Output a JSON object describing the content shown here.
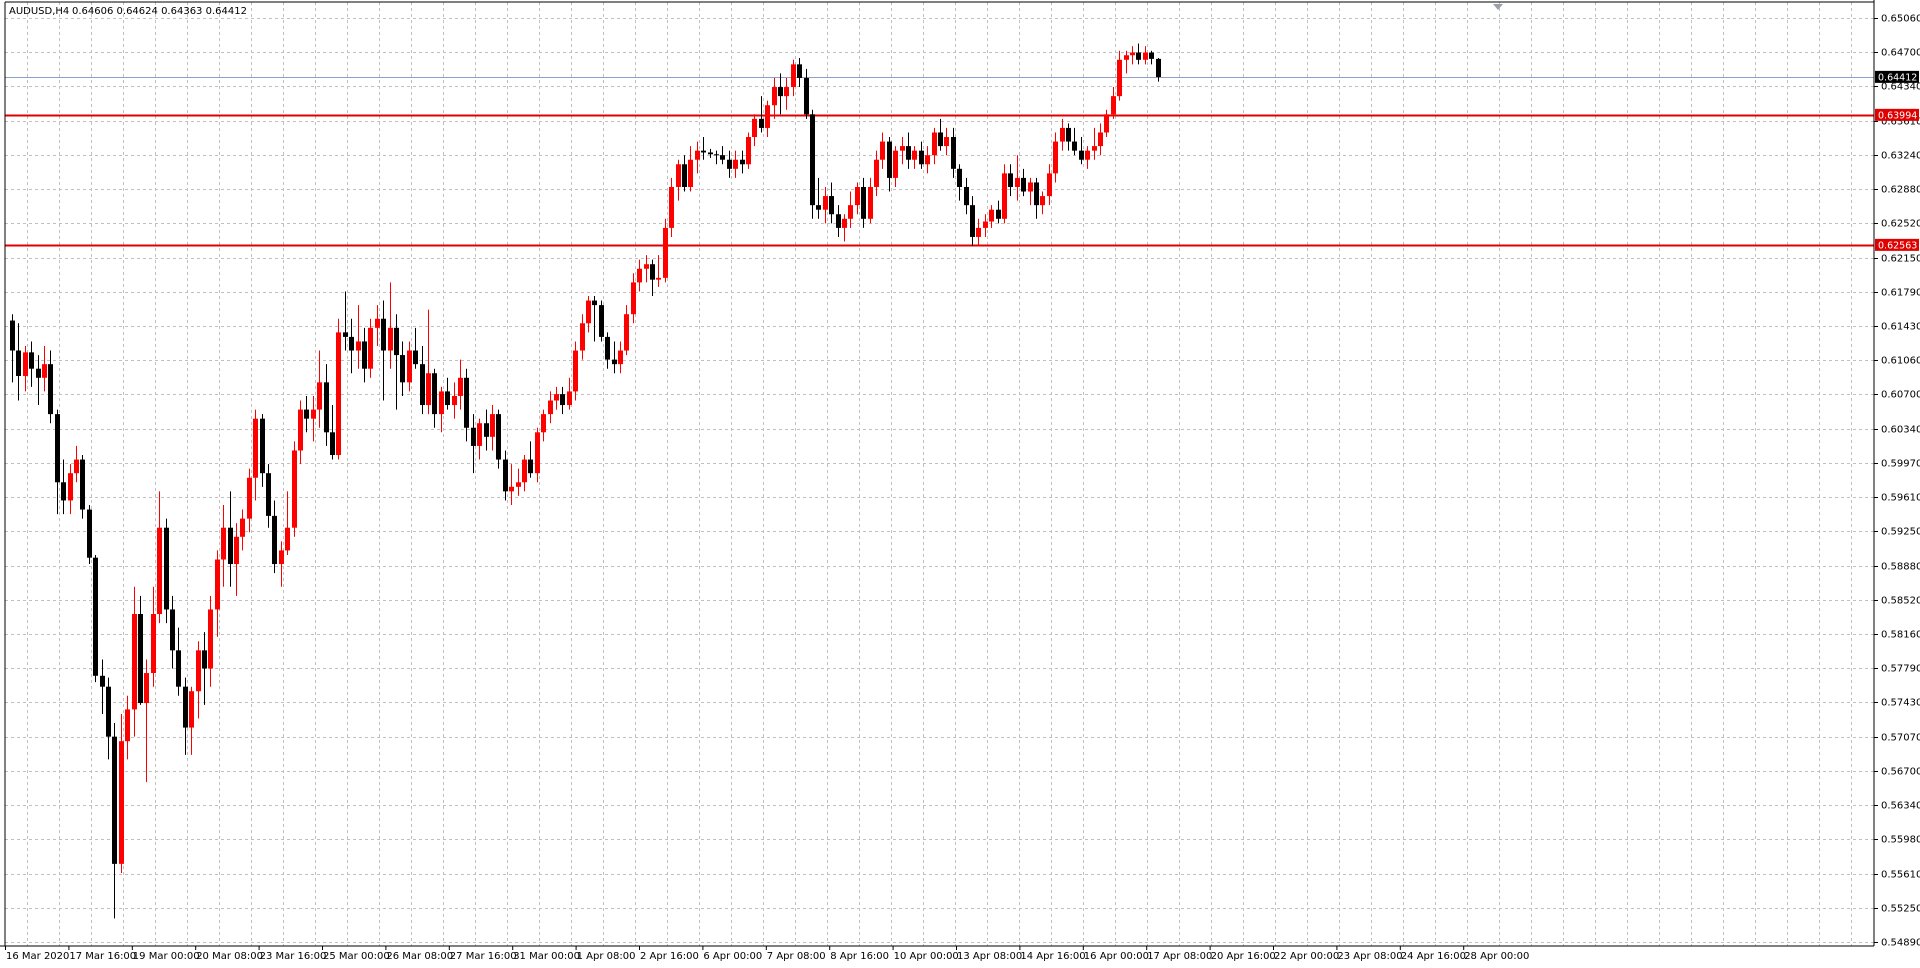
{
  "header": {
    "symbol_label": "AUDUSD,H4",
    "ohlc_label": "0.64606 0.64624 0.64363 0.64412"
  },
  "colors": {
    "bull": "#ff0000",
    "bear": "#000000",
    "grid": "#c0c0c0",
    "level_line": "#e00000",
    "bid_line": "#8da0c8",
    "background": "#ffffff"
  },
  "price_axis": {
    "ticks": [
      "0.65060",
      "0.64700",
      "0.64340",
      "0.63610",
      "0.63240",
      "0.62880",
      "0.62520",
      "0.62150",
      "0.61790",
      "0.61430",
      "0.61060",
      "0.60700",
      "0.60340",
      "0.59970",
      "0.59610",
      "0.59250",
      "0.58880",
      "0.58520",
      "0.58160",
      "0.57790",
      "0.57430",
      "0.57070",
      "0.56700",
      "0.56340",
      "0.55980",
      "0.55610",
      "0.55250",
      "0.54890"
    ],
    "current_price_label": "0.64412",
    "levels": [
      {
        "label": "0.63994",
        "value": 0.63994
      },
      {
        "label": "0.62563",
        "value": 0.62563
      }
    ]
  },
  "time_axis": {
    "labels": [
      "16 Mar 2020",
      "17 Mar 16:00",
      "19 Mar 00:00",
      "20 Mar 08:00",
      "23 Mar 16:00",
      "25 Mar 00:00",
      "26 Mar 08:00",
      "27 Mar 16:00",
      "31 Mar 00:00",
      "1 Apr 08:00",
      "2 Apr 16:00",
      "6 Apr 00:00",
      "7 Apr 08:00",
      "8 Apr 16:00",
      "10 Apr 00:00",
      "13 Apr 08:00",
      "14 Apr 16:00",
      "16 Apr 00:00",
      "17 Apr 08:00",
      "20 Apr 16:00",
      "22 Apr 00:00",
      "23 Apr 08:00",
      "24 Apr 16:00",
      "28 Apr 00:00"
    ]
  },
  "chart_data": {
    "type": "candlestick",
    "title": "AUDUSD,H4",
    "ylim": [
      0.5489,
      0.6506
    ],
    "current_price": 0.64412,
    "grid": true,
    "candles": [
      {
        "o": 0.6173,
        "h": 0.618,
        "l": 0.6105,
        "c": 0.614
      },
      {
        "o": 0.614,
        "h": 0.617,
        "l": 0.6085,
        "c": 0.6112
      },
      {
        "o": 0.6112,
        "h": 0.6145,
        "l": 0.6095,
        "c": 0.6138
      },
      {
        "o": 0.6138,
        "h": 0.615,
        "l": 0.61,
        "c": 0.612
      },
      {
        "o": 0.612,
        "h": 0.6135,
        "l": 0.608,
        "c": 0.611
      },
      {
        "o": 0.611,
        "h": 0.6145,
        "l": 0.6095,
        "c": 0.6125
      },
      {
        "o": 0.6125,
        "h": 0.614,
        "l": 0.606,
        "c": 0.607
      },
      {
        "o": 0.607,
        "h": 0.6075,
        "l": 0.596,
        "c": 0.5995
      },
      {
        "o": 0.5995,
        "h": 0.602,
        "l": 0.596,
        "c": 0.5975
      },
      {
        "o": 0.5975,
        "h": 0.6015,
        "l": 0.596,
        "c": 0.6005
      },
      {
        "o": 0.6005,
        "h": 0.6035,
        "l": 0.5995,
        "c": 0.602
      },
      {
        "o": 0.602,
        "h": 0.6025,
        "l": 0.5955,
        "c": 0.5965
      },
      {
        "o": 0.5965,
        "h": 0.597,
        "l": 0.5905,
        "c": 0.5912
      },
      {
        "o": 0.5912,
        "h": 0.5915,
        "l": 0.5775,
        "c": 0.5782
      },
      {
        "o": 0.5782,
        "h": 0.58,
        "l": 0.574,
        "c": 0.577
      },
      {
        "o": 0.577,
        "h": 0.578,
        "l": 0.569,
        "c": 0.5715
      },
      {
        "o": 0.5715,
        "h": 0.573,
        "l": 0.5515,
        "c": 0.5575
      },
      {
        "o": 0.5575,
        "h": 0.574,
        "l": 0.5565,
        "c": 0.571
      },
      {
        "o": 0.571,
        "h": 0.576,
        "l": 0.569,
        "c": 0.5745
      },
      {
        "o": 0.5745,
        "h": 0.588,
        "l": 0.5715,
        "c": 0.585
      },
      {
        "o": 0.585,
        "h": 0.587,
        "l": 0.575,
        "c": 0.5752
      },
      {
        "o": 0.5752,
        "h": 0.58,
        "l": 0.5665,
        "c": 0.5785
      },
      {
        "o": 0.5785,
        "h": 0.588,
        "l": 0.577,
        "c": 0.585
      },
      {
        "o": 0.585,
        "h": 0.5985,
        "l": 0.584,
        "c": 0.5945
      },
      {
        "o": 0.5945,
        "h": 0.5955,
        "l": 0.584,
        "c": 0.5855
      },
      {
        "o": 0.5855,
        "h": 0.587,
        "l": 0.579,
        "c": 0.581
      },
      {
        "o": 0.581,
        "h": 0.5835,
        "l": 0.576,
        "c": 0.577
      },
      {
        "o": 0.577,
        "h": 0.578,
        "l": 0.5695,
        "c": 0.5725
      },
      {
        "o": 0.5725,
        "h": 0.577,
        "l": 0.5695,
        "c": 0.5765
      },
      {
        "o": 0.5765,
        "h": 0.582,
        "l": 0.5735,
        "c": 0.581
      },
      {
        "o": 0.581,
        "h": 0.583,
        "l": 0.575,
        "c": 0.579
      },
      {
        "o": 0.579,
        "h": 0.587,
        "l": 0.577,
        "c": 0.5855
      },
      {
        "o": 0.5855,
        "h": 0.592,
        "l": 0.5825,
        "c": 0.591
      },
      {
        "o": 0.591,
        "h": 0.597,
        "l": 0.588,
        "c": 0.5945
      },
      {
        "o": 0.5945,
        "h": 0.5985,
        "l": 0.588,
        "c": 0.5905
      },
      {
        "o": 0.5905,
        "h": 0.595,
        "l": 0.587,
        "c": 0.5935
      },
      {
        "o": 0.5935,
        "h": 0.5965,
        "l": 0.592,
        "c": 0.5955
      },
      {
        "o": 0.5955,
        "h": 0.601,
        "l": 0.594,
        "c": 0.6
      },
      {
        "o": 0.6,
        "h": 0.6075,
        "l": 0.5975,
        "c": 0.6065
      },
      {
        "o": 0.6065,
        "h": 0.607,
        "l": 0.599,
        "c": 0.6005
      },
      {
        "o": 0.6005,
        "h": 0.6015,
        "l": 0.5945,
        "c": 0.5958
      },
      {
        "o": 0.5958,
        "h": 0.5975,
        "l": 0.5895,
        "c": 0.5905
      },
      {
        "o": 0.5905,
        "h": 0.593,
        "l": 0.588,
        "c": 0.592
      },
      {
        "o": 0.592,
        "h": 0.5985,
        "l": 0.5915,
        "c": 0.5945
      },
      {
        "o": 0.5945,
        "h": 0.604,
        "l": 0.5935,
        "c": 0.603
      },
      {
        "o": 0.603,
        "h": 0.6085,
        "l": 0.6015,
        "c": 0.6075
      },
      {
        "o": 0.6075,
        "h": 0.609,
        "l": 0.605,
        "c": 0.6065
      },
      {
        "o": 0.6065,
        "h": 0.609,
        "l": 0.604,
        "c": 0.6075
      },
      {
        "o": 0.6075,
        "h": 0.614,
        "l": 0.6055,
        "c": 0.6105
      },
      {
        "o": 0.6105,
        "h": 0.6125,
        "l": 0.6035,
        "c": 0.605
      },
      {
        "o": 0.605,
        "h": 0.608,
        "l": 0.602,
        "c": 0.6025
      },
      {
        "o": 0.6025,
        "h": 0.6175,
        "l": 0.602,
        "c": 0.616
      },
      {
        "o": 0.616,
        "h": 0.6205,
        "l": 0.614,
        "c": 0.6155
      },
      {
        "o": 0.6155,
        "h": 0.6175,
        "l": 0.6115,
        "c": 0.614
      },
      {
        "o": 0.614,
        "h": 0.619,
        "l": 0.612,
        "c": 0.615
      },
      {
        "o": 0.615,
        "h": 0.6165,
        "l": 0.6105,
        "c": 0.612
      },
      {
        "o": 0.612,
        "h": 0.6175,
        "l": 0.611,
        "c": 0.6165
      },
      {
        "o": 0.6165,
        "h": 0.619,
        "l": 0.6145,
        "c": 0.6175
      },
      {
        "o": 0.6175,
        "h": 0.6195,
        "l": 0.6085,
        "c": 0.614
      },
      {
        "o": 0.614,
        "h": 0.6215,
        "l": 0.612,
        "c": 0.6165
      },
      {
        "o": 0.6165,
        "h": 0.618,
        "l": 0.6075,
        "c": 0.6135
      },
      {
        "o": 0.6135,
        "h": 0.615,
        "l": 0.609,
        "c": 0.6105
      },
      {
        "o": 0.6105,
        "h": 0.615,
        "l": 0.6095,
        "c": 0.614
      },
      {
        "o": 0.614,
        "h": 0.6165,
        "l": 0.612,
        "c": 0.6125
      },
      {
        "o": 0.6125,
        "h": 0.6145,
        "l": 0.607,
        "c": 0.608
      },
      {
        "o": 0.608,
        "h": 0.6185,
        "l": 0.607,
        "c": 0.6115
      },
      {
        "o": 0.6115,
        "h": 0.612,
        "l": 0.6055,
        "c": 0.607
      },
      {
        "o": 0.607,
        "h": 0.61,
        "l": 0.605,
        "c": 0.6095
      },
      {
        "o": 0.6095,
        "h": 0.611,
        "l": 0.6075,
        "c": 0.608
      },
      {
        "o": 0.608,
        "h": 0.6105,
        "l": 0.6065,
        "c": 0.609
      },
      {
        "o": 0.609,
        "h": 0.613,
        "l": 0.6075,
        "c": 0.611
      },
      {
        "o": 0.611,
        "h": 0.612,
        "l": 0.604,
        "c": 0.6055
      },
      {
        "o": 0.6055,
        "h": 0.607,
        "l": 0.6005,
        "c": 0.6035
      },
      {
        "o": 0.6035,
        "h": 0.6065,
        "l": 0.602,
        "c": 0.606
      },
      {
        "o": 0.606,
        "h": 0.6075,
        "l": 0.603,
        "c": 0.6045
      },
      {
        "o": 0.6045,
        "h": 0.608,
        "l": 0.603,
        "c": 0.607
      },
      {
        "o": 0.607,
        "h": 0.6075,
        "l": 0.601,
        "c": 0.602
      },
      {
        "o": 0.602,
        "h": 0.603,
        "l": 0.5975,
        "c": 0.5985
      },
      {
        "o": 0.5985,
        "h": 0.6015,
        "l": 0.597,
        "c": 0.599
      },
      {
        "o": 0.599,
        "h": 0.601,
        "l": 0.598,
        "c": 0.5995
      },
      {
        "o": 0.5995,
        "h": 0.6025,
        "l": 0.5985,
        "c": 0.602
      },
      {
        "o": 0.602,
        "h": 0.604,
        "l": 0.6,
        "c": 0.6005
      },
      {
        "o": 0.6005,
        "h": 0.6055,
        "l": 0.5995,
        "c": 0.605
      },
      {
        "o": 0.605,
        "h": 0.6075,
        "l": 0.604,
        "c": 0.607
      },
      {
        "o": 0.607,
        "h": 0.6095,
        "l": 0.606,
        "c": 0.6085
      },
      {
        "o": 0.6085,
        "h": 0.61,
        "l": 0.6075,
        "c": 0.6092
      },
      {
        "o": 0.6092,
        "h": 0.61,
        "l": 0.607,
        "c": 0.608
      },
      {
        "o": 0.608,
        "h": 0.611,
        "l": 0.6075,
        "c": 0.6095
      },
      {
        "o": 0.6095,
        "h": 0.615,
        "l": 0.6085,
        "c": 0.614
      },
      {
        "o": 0.614,
        "h": 0.618,
        "l": 0.613,
        "c": 0.617
      },
      {
        "o": 0.617,
        "h": 0.62,
        "l": 0.616,
        "c": 0.6195
      },
      {
        "o": 0.6195,
        "h": 0.62,
        "l": 0.615,
        "c": 0.619
      },
      {
        "o": 0.619,
        "h": 0.6195,
        "l": 0.615,
        "c": 0.6155
      },
      {
        "o": 0.6155,
        "h": 0.616,
        "l": 0.612,
        "c": 0.613
      },
      {
        "o": 0.613,
        "h": 0.615,
        "l": 0.6115,
        "c": 0.6125
      },
      {
        "o": 0.6125,
        "h": 0.615,
        "l": 0.6115,
        "c": 0.614
      },
      {
        "o": 0.614,
        "h": 0.619,
        "l": 0.6135,
        "c": 0.618
      },
      {
        "o": 0.618,
        "h": 0.6225,
        "l": 0.617,
        "c": 0.6215
      },
      {
        "o": 0.6215,
        "h": 0.624,
        "l": 0.6205,
        "c": 0.623
      },
      {
        "o": 0.623,
        "h": 0.6245,
        "l": 0.6215,
        "c": 0.6235
      },
      {
        "o": 0.6235,
        "h": 0.624,
        "l": 0.62,
        "c": 0.6218
      },
      {
        "o": 0.6218,
        "h": 0.6245,
        "l": 0.621,
        "c": 0.622
      },
      {
        "o": 0.622,
        "h": 0.6285,
        "l": 0.6215,
        "c": 0.6275
      },
      {
        "o": 0.6275,
        "h": 0.633,
        "l": 0.6265,
        "c": 0.632
      },
      {
        "o": 0.632,
        "h": 0.635,
        "l": 0.6305,
        "c": 0.6345
      },
      {
        "o": 0.6345,
        "h": 0.6355,
        "l": 0.6315,
        "c": 0.632
      },
      {
        "o": 0.632,
        "h": 0.6365,
        "l": 0.6315,
        "c": 0.635
      },
      {
        "o": 0.635,
        "h": 0.637,
        "l": 0.6335,
        "c": 0.636
      },
      {
        "o": 0.636,
        "h": 0.6375,
        "l": 0.635,
        "c": 0.6358
      },
      {
        "o": 0.6358,
        "h": 0.6362,
        "l": 0.6352,
        "c": 0.6356
      },
      {
        "o": 0.6356,
        "h": 0.636,
        "l": 0.6345,
        "c": 0.6355
      },
      {
        "o": 0.6355,
        "h": 0.6365,
        "l": 0.6345,
        "c": 0.635
      },
      {
        "o": 0.635,
        "h": 0.636,
        "l": 0.633,
        "c": 0.634
      },
      {
        "o": 0.634,
        "h": 0.636,
        "l": 0.633,
        "c": 0.635
      },
      {
        "o": 0.635,
        "h": 0.636,
        "l": 0.6335,
        "c": 0.6345
      },
      {
        "o": 0.6345,
        "h": 0.638,
        "l": 0.634,
        "c": 0.6375
      },
      {
        "o": 0.6375,
        "h": 0.64,
        "l": 0.6365,
        "c": 0.6395
      },
      {
        "o": 0.6395,
        "h": 0.642,
        "l": 0.638,
        "c": 0.6385
      },
      {
        "o": 0.6385,
        "h": 0.6415,
        "l": 0.6375,
        "c": 0.641
      },
      {
        "o": 0.641,
        "h": 0.644,
        "l": 0.6395,
        "c": 0.643
      },
      {
        "o": 0.643,
        "h": 0.6445,
        "l": 0.64,
        "c": 0.642
      },
      {
        "o": 0.642,
        "h": 0.644,
        "l": 0.6405,
        "c": 0.643
      },
      {
        "o": 0.643,
        "h": 0.646,
        "l": 0.642,
        "c": 0.6455
      },
      {
        "o": 0.6455,
        "h": 0.6462,
        "l": 0.643,
        "c": 0.644
      },
      {
        "o": 0.644,
        "h": 0.645,
        "l": 0.6395,
        "c": 0.64
      },
      {
        "o": 0.64,
        "h": 0.6405,
        "l": 0.6285,
        "c": 0.63
      },
      {
        "o": 0.63,
        "h": 0.633,
        "l": 0.6285,
        "c": 0.6295
      },
      {
        "o": 0.6295,
        "h": 0.632,
        "l": 0.628,
        "c": 0.631
      },
      {
        "o": 0.631,
        "h": 0.6325,
        "l": 0.628,
        "c": 0.629
      },
      {
        "o": 0.629,
        "h": 0.63,
        "l": 0.6265,
        "c": 0.6275
      },
      {
        "o": 0.6275,
        "h": 0.629,
        "l": 0.626,
        "c": 0.6285
      },
      {
        "o": 0.6285,
        "h": 0.6315,
        "l": 0.6275,
        "c": 0.63
      },
      {
        "o": 0.63,
        "h": 0.6325,
        "l": 0.629,
        "c": 0.632
      },
      {
        "o": 0.632,
        "h": 0.633,
        "l": 0.6275,
        "c": 0.6285
      },
      {
        "o": 0.6285,
        "h": 0.633,
        "l": 0.628,
        "c": 0.632
      },
      {
        "o": 0.632,
        "h": 0.636,
        "l": 0.631,
        "c": 0.635
      },
      {
        "o": 0.635,
        "h": 0.638,
        "l": 0.634,
        "c": 0.637
      },
      {
        "o": 0.637,
        "h": 0.6375,
        "l": 0.6315,
        "c": 0.633
      },
      {
        "o": 0.633,
        "h": 0.6365,
        "l": 0.632,
        "c": 0.636
      },
      {
        "o": 0.636,
        "h": 0.6375,
        "l": 0.6345,
        "c": 0.6365
      },
      {
        "o": 0.6365,
        "h": 0.638,
        "l": 0.634,
        "c": 0.635
      },
      {
        "o": 0.635,
        "h": 0.6365,
        "l": 0.634,
        "c": 0.636
      },
      {
        "o": 0.636,
        "h": 0.637,
        "l": 0.634,
        "c": 0.6345
      },
      {
        "o": 0.6345,
        "h": 0.6365,
        "l": 0.6335,
        "c": 0.6355
      },
      {
        "o": 0.6355,
        "h": 0.6385,
        "l": 0.6345,
        "c": 0.638
      },
      {
        "o": 0.638,
        "h": 0.6395,
        "l": 0.636,
        "c": 0.6365
      },
      {
        "o": 0.6365,
        "h": 0.6385,
        "l": 0.6355,
        "c": 0.6375
      },
      {
        "o": 0.6375,
        "h": 0.6385,
        "l": 0.633,
        "c": 0.634
      },
      {
        "o": 0.634,
        "h": 0.6345,
        "l": 0.6305,
        "c": 0.632
      },
      {
        "o": 0.632,
        "h": 0.633,
        "l": 0.629,
        "c": 0.63
      },
      {
        "o": 0.63,
        "h": 0.631,
        "l": 0.6255,
        "c": 0.6265
      },
      {
        "o": 0.6265,
        "h": 0.6285,
        "l": 0.6255,
        "c": 0.6275
      },
      {
        "o": 0.6275,
        "h": 0.629,
        "l": 0.6265,
        "c": 0.6282
      },
      {
        "o": 0.6282,
        "h": 0.63,
        "l": 0.6275,
        "c": 0.6295
      },
      {
        "o": 0.6295,
        "h": 0.6305,
        "l": 0.628,
        "c": 0.6285
      },
      {
        "o": 0.6285,
        "h": 0.6345,
        "l": 0.628,
        "c": 0.6335
      },
      {
        "o": 0.6335,
        "h": 0.6345,
        "l": 0.631,
        "c": 0.632
      },
      {
        "o": 0.632,
        "h": 0.6355,
        "l": 0.6305,
        "c": 0.633
      },
      {
        "o": 0.633,
        "h": 0.634,
        "l": 0.631,
        "c": 0.6315
      },
      {
        "o": 0.6315,
        "h": 0.633,
        "l": 0.63,
        "c": 0.6325
      },
      {
        "o": 0.6325,
        "h": 0.633,
        "l": 0.6285,
        "c": 0.63
      },
      {
        "o": 0.63,
        "h": 0.6315,
        "l": 0.629,
        "c": 0.631
      },
      {
        "o": 0.631,
        "h": 0.6345,
        "l": 0.63,
        "c": 0.6335
      },
      {
        "o": 0.6335,
        "h": 0.638,
        "l": 0.6325,
        "c": 0.637
      },
      {
        "o": 0.637,
        "h": 0.6395,
        "l": 0.636,
        "c": 0.6385
      },
      {
        "o": 0.6385,
        "h": 0.639,
        "l": 0.636,
        "c": 0.637
      },
      {
        "o": 0.637,
        "h": 0.6385,
        "l": 0.6355,
        "c": 0.636
      },
      {
        "o": 0.636,
        "h": 0.6375,
        "l": 0.6345,
        "c": 0.635
      },
      {
        "o": 0.635,
        "h": 0.6365,
        "l": 0.634,
        "c": 0.636
      },
      {
        "o": 0.636,
        "h": 0.6385,
        "l": 0.635,
        "c": 0.6365
      },
      {
        "o": 0.6365,
        "h": 0.639,
        "l": 0.6355,
        "c": 0.638
      },
      {
        "o": 0.638,
        "h": 0.6405,
        "l": 0.6375,
        "c": 0.64
      },
      {
        "o": 0.64,
        "h": 0.643,
        "l": 0.6395,
        "c": 0.642
      },
      {
        "o": 0.642,
        "h": 0.647,
        "l": 0.6415,
        "c": 0.646
      },
      {
        "o": 0.646,
        "h": 0.647,
        "l": 0.6445,
        "c": 0.6465
      },
      {
        "o": 0.6465,
        "h": 0.6475,
        "l": 0.6455,
        "c": 0.6468
      },
      {
        "o": 0.6468,
        "h": 0.6478,
        "l": 0.6455,
        "c": 0.646
      },
      {
        "o": 0.646,
        "h": 0.6475,
        "l": 0.6455,
        "c": 0.6468
      },
      {
        "o": 0.6468,
        "h": 0.647,
        "l": 0.6455,
        "c": 0.6461
      },
      {
        "o": 0.6461,
        "h": 0.6462,
        "l": 0.6436,
        "c": 0.6441
      }
    ]
  }
}
